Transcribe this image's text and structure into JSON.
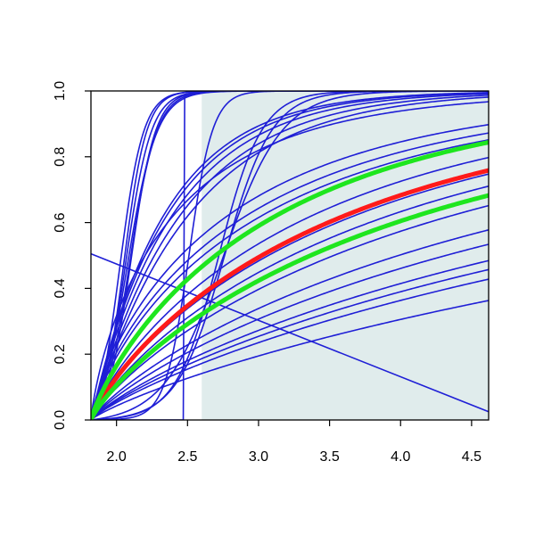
{
  "chart_data": {
    "type": "line",
    "title": "",
    "xlabel": "",
    "ylabel": "",
    "xlim": [
      1.82,
      4.62
    ],
    "ylim": [
      0.0,
      1.0
    ],
    "x_ticks": [
      2.0,
      2.5,
      3.0,
      3.5,
      4.0,
      4.5
    ],
    "x_tick_labels": [
      "2.0",
      "2.5",
      "3.0",
      "3.5",
      "4.0",
      "4.5"
    ],
    "y_ticks": [
      0.0,
      0.2,
      0.4,
      0.6,
      0.8,
      1.0
    ],
    "y_tick_labels": [
      "0.0",
      "0.2",
      "0.4",
      "0.6",
      "0.8",
      "1.0"
    ],
    "grid": false,
    "legend": "none",
    "shaded_region": {
      "x_start": 2.6,
      "x_end": 4.62,
      "color": "#e0ecec"
    },
    "colors": {
      "blue": "#1f1fd6",
      "red": "#ff1a1a",
      "green": "#1ee61e",
      "axis": "#000000"
    },
    "series": [
      {
        "color": "blue",
        "kind": "logistic",
        "x0": 1.82,
        "k": 1.42,
        "p": 1.0,
        "c": 0.0,
        "emphasis": false
      },
      {
        "color": "blue",
        "kind": "logistic",
        "x0": 1.82,
        "k": 1.55,
        "p": 1.0,
        "c": 0.0,
        "emphasis": false
      },
      {
        "color": "blue",
        "kind": "logistic",
        "x0": 1.82,
        "k": 1.7,
        "p": 1.0,
        "c": 0.0,
        "emphasis": false
      },
      {
        "color": "blue",
        "kind": "logistic",
        "x0": 1.82,
        "k": 1.82,
        "p": 1.0,
        "c": 0.0,
        "emphasis": false
      },
      {
        "color": "blue",
        "kind": "logistic",
        "x0": 1.82,
        "k": 1.9,
        "p": 1.0,
        "c": 0.0,
        "emphasis": false
      },
      {
        "color": "blue",
        "kind": "logistic",
        "x0": 1.82,
        "k": 1.66,
        "p": 0.8,
        "c": 0.0,
        "emphasis": false
      },
      {
        "color": "blue",
        "kind": "logistic",
        "x0": 1.82,
        "k": 1.0,
        "p": 0.8,
        "c": 0.0,
        "emphasis": false
      },
      {
        "color": "blue",
        "kind": "logistic",
        "x0": 1.82,
        "k": 0.88,
        "p": 0.8,
        "c": 0.0,
        "emphasis": false
      },
      {
        "color": "blue",
        "kind": "logistic",
        "x0": 1.82,
        "k": 0.8,
        "p": 0.8,
        "c": 0.0,
        "emphasis": false
      },
      {
        "color": "blue",
        "kind": "logistic",
        "x0": 1.82,
        "k": 0.62,
        "p": 0.85,
        "c": 0.0,
        "emphasis": false
      },
      {
        "color": "blue",
        "kind": "logistic",
        "x0": 1.82,
        "k": 0.52,
        "p": 0.85,
        "c": 0.0,
        "emphasis": false
      },
      {
        "color": "blue",
        "kind": "logistic",
        "x0": 1.82,
        "k": 0.46,
        "p": 0.85,
        "c": 0.0,
        "emphasis": false
      },
      {
        "color": "blue",
        "kind": "logistic",
        "x0": 1.82,
        "k": 0.42,
        "p": 0.85,
        "c": 0.0,
        "emphasis": false
      },
      {
        "color": "blue",
        "kind": "logistic",
        "x0": 1.82,
        "k": 0.38,
        "p": 0.85,
        "c": 0.0,
        "emphasis": false
      },
      {
        "color": "blue",
        "kind": "logistic",
        "x0": 1.82,
        "k": 0.3,
        "p": 0.85,
        "c": 0.0,
        "emphasis": false
      },
      {
        "color": "blue",
        "kind": "logistic",
        "x0": 1.82,
        "k": 0.26,
        "p": 0.85,
        "c": 0.0,
        "emphasis": false
      },
      {
        "color": "blue",
        "kind": "logistic",
        "x0": 1.82,
        "k": 0.22,
        "p": 0.85,
        "c": 0.0,
        "emphasis": false
      },
      {
        "color": "blue",
        "kind": "logistic",
        "x0": 1.82,
        "k": 0.2,
        "p": 0.85,
        "c": 0.0,
        "emphasis": false
      },
      {
        "color": "blue",
        "kind": "logistic",
        "x0": 1.82,
        "k": 0.18,
        "p": 0.85,
        "c": 0.0,
        "emphasis": false
      },
      {
        "color": "blue",
        "kind": "logistic",
        "x0": 1.82,
        "k": 0.14,
        "p": 0.85,
        "c": 0.0,
        "emphasis": false
      },
      {
        "color": "blue",
        "kind": "sigmoid",
        "x0": 2.06,
        "k": 11.0,
        "emphasis": false
      },
      {
        "color": "blue",
        "kind": "sigmoid",
        "x0": 2.02,
        "k": 12.0,
        "emphasis": false
      },
      {
        "color": "blue",
        "kind": "sigmoid",
        "x0": 2.05,
        "k": 12.5,
        "emphasis": false
      },
      {
        "color": "blue",
        "kind": "sigmoid",
        "x0": 2.09,
        "k": 10.5,
        "emphasis": false
      },
      {
        "color": "blue",
        "kind": "sigmoid",
        "x0": 2.1,
        "k": 11.5,
        "emphasis": false
      },
      {
        "color": "blue",
        "kind": "sigmoid",
        "x0": 2.07,
        "k": 9.5,
        "emphasis": false
      },
      {
        "color": "blue",
        "kind": "sigmoid",
        "x0": 2.51,
        "k": 12.0,
        "emphasis": false
      },
      {
        "color": "blue",
        "kind": "sigmoid",
        "x0": 2.72,
        "k": 6.6,
        "emphasis": false
      },
      {
        "color": "blue",
        "kind": "sigmoid",
        "x0": 2.76,
        "k": 6.0,
        "emphasis": false
      },
      {
        "color": "blue",
        "kind": "sigmoid",
        "x0": 2.75,
        "k": 4.8,
        "emphasis": false
      },
      {
        "color": "blue",
        "kind": "step",
        "xs": [
          1.82,
          2.47,
          2.48,
          2.55,
          4.62
        ],
        "ys": [
          0.0,
          0.0,
          0.985,
          1.0,
          1.0
        ],
        "emphasis": false
      },
      {
        "color": "blue",
        "kind": "points",
        "xs": [
          1.82,
          4.62
        ],
        "ys": [
          0.505,
          0.025
        ],
        "emphasis": false
      },
      {
        "color": "red",
        "kind": "logistic",
        "x0": 1.82,
        "k": 0.54,
        "p": 0.85,
        "c": 0.0,
        "emphasis": true
      },
      {
        "color": "green",
        "kind": "logistic",
        "x0": 1.82,
        "k": 0.74,
        "p": 0.85,
        "c": 0.0,
        "emphasis": true
      },
      {
        "color": "green",
        "kind": "logistic",
        "x0": 1.82,
        "k": 0.42,
        "p": 0.85,
        "c": 0.0,
        "emphasis": true
      }
    ]
  }
}
